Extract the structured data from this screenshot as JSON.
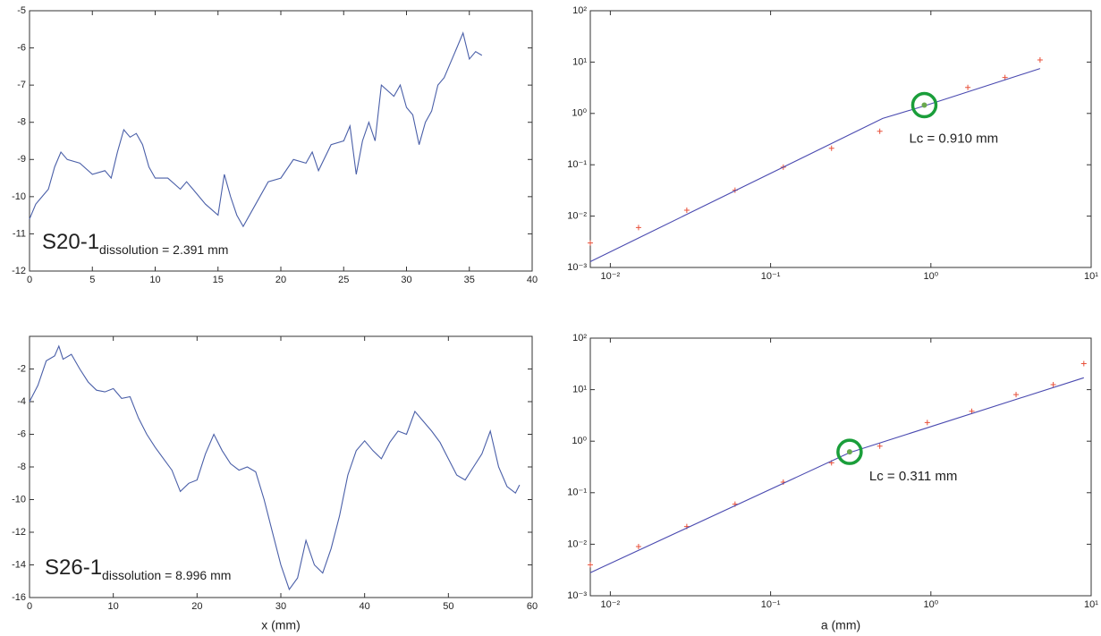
{
  "chart_data": [
    {
      "type": "line",
      "label": "S20-1",
      "label_sub": "dissolution = 2.391 mm",
      "xlim": [
        0,
        40
      ],
      "xticks": [
        0,
        5,
        10,
        15,
        20,
        25,
        30,
        35,
        40
      ],
      "ylim": [
        -12,
        -5
      ],
      "yticks": [
        -12,
        -11,
        -10,
        -9,
        -8,
        -7,
        -6,
        -5
      ],
      "series": [
        {
          "color": "#4a5fa8",
          "mode": "line",
          "x": [
            0,
            0.5,
            1,
            1.5,
            2,
            2.5,
            3,
            4,
            5,
            6,
            6.5,
            7,
            7.5,
            8,
            8.5,
            9,
            9.5,
            10,
            11,
            12,
            12.5,
            13,
            14,
            15,
            15.5,
            16,
            16.5,
            17,
            18,
            19,
            20,
            21,
            22,
            22.5,
            23,
            24,
            25,
            25.5,
            26,
            26.5,
            27,
            27.5,
            28,
            29,
            29.5,
            30,
            30.5,
            31,
            31.5,
            32,
            32.5,
            33,
            34,
            34.5,
            35,
            35.5,
            36
          ],
          "values": [
            -10.6,
            -10.2,
            -10.0,
            -9.8,
            -9.2,
            -8.8,
            -9.0,
            -9.1,
            -9.4,
            -9.3,
            -9.5,
            -8.8,
            -8.2,
            -8.4,
            -8.3,
            -8.6,
            -9.2,
            -9.5,
            -9.5,
            -9.8,
            -9.6,
            -9.8,
            -10.2,
            -10.5,
            -9.4,
            -10.0,
            -10.5,
            -10.8,
            -10.2,
            -9.6,
            -9.5,
            -9.0,
            -9.1,
            -8.8,
            -9.3,
            -8.6,
            -8.5,
            -8.1,
            -9.4,
            -8.5,
            -8.0,
            -8.5,
            -7.0,
            -7.3,
            -7.0,
            -7.6,
            -7.8,
            -8.6,
            -8.0,
            -7.7,
            -7.0,
            -6.8,
            -6.0,
            -5.6,
            -6.3,
            -6.1,
            -6.2
          ]
        }
      ]
    },
    {
      "type": "scatter",
      "xscale": "log",
      "yscale": "log",
      "xlim": [
        0.0075,
        10
      ],
      "xticks": [
        {
          "value": 0.01,
          "label": "10⁻²"
        },
        {
          "value": 0.1,
          "label": "10⁻¹"
        },
        {
          "value": 1,
          "label": "10⁰"
        },
        {
          "value": 10,
          "label": "10¹"
        }
      ],
      "ylim": [
        0.001,
        100
      ],
      "yticks": [
        {
          "value": 0.001,
          "label": "10⁻³"
        },
        {
          "value": 0.01,
          "label": "10⁻²"
        },
        {
          "value": 0.1,
          "label": "10⁻¹"
        },
        {
          "value": 1,
          "label": "10⁰"
        },
        {
          "value": 10,
          "label": "10¹"
        },
        {
          "value": 100,
          "label": "10²"
        }
      ],
      "series": [
        {
          "color": "#e8503a",
          "mode": "marker",
          "x": [
            0.0075,
            0.015,
            0.03,
            0.06,
            0.12,
            0.24,
            0.48,
            1.7,
            2.9,
            4.8
          ],
          "values": [
            0.003,
            0.006,
            0.013,
            0.032,
            0.09,
            0.21,
            0.45,
            3.2,
            5,
            11
          ]
        },
        {
          "color": "#4a4ab0",
          "mode": "line",
          "x": [
            0.0075,
            0.5,
            0.91,
            4.8
          ],
          "values": [
            0.0013,
            0.8,
            1.4,
            7.5
          ]
        }
      ],
      "highlight": {
        "x": 0.91,
        "y": 1.45,
        "color": "#1a9e3a",
        "text": "Lc = 0.910 mm"
      }
    },
    {
      "type": "line",
      "label": "S26-1",
      "label_sub": "dissolution = 8.996 mm",
      "xlabel": "x (mm)",
      "xlim": [
        0,
        60
      ],
      "xticks": [
        0,
        10,
        20,
        30,
        40,
        50,
        60
      ],
      "ylim": [
        -16,
        0
      ],
      "yticks": [
        -16,
        -14,
        -12,
        -10,
        -8,
        -6,
        -4,
        -2
      ],
      "series": [
        {
          "color": "#4a5fa8",
          "mode": "line",
          "x": [
            0,
            1,
            2,
            3,
            3.5,
            4,
            5,
            6,
            7,
            8,
            9,
            10,
            11,
            12,
            13,
            14,
            15,
            16,
            17,
            18,
            19,
            20,
            21,
            22,
            23,
            24,
            25,
            26,
            27,
            28,
            29,
            30,
            31,
            32,
            33,
            34,
            35,
            36,
            37,
            38,
            39,
            40,
            41,
            42,
            43,
            44,
            45,
            46,
            47,
            48,
            49,
            50,
            51,
            52,
            53,
            54,
            55,
            56,
            57,
            58,
            58.5
          ],
          "values": [
            -4.0,
            -3.0,
            -1.5,
            -1.2,
            -0.6,
            -1.4,
            -1.1,
            -2.0,
            -2.8,
            -3.3,
            -3.4,
            -3.2,
            -3.8,
            -3.7,
            -5.0,
            -6.0,
            -6.8,
            -7.5,
            -8.2,
            -9.5,
            -9.0,
            -8.8,
            -7.2,
            -6.0,
            -7.0,
            -7.8,
            -8.2,
            -8.0,
            -8.3,
            -10.0,
            -12.0,
            -14.0,
            -15.5,
            -14.8,
            -12.5,
            -14.0,
            -14.5,
            -13.0,
            -11.0,
            -8.5,
            -7.0,
            -6.4,
            -7.0,
            -7.5,
            -6.5,
            -5.8,
            -6.0,
            -4.6,
            -5.2,
            -5.8,
            -6.5,
            -7.5,
            -8.5,
            -8.8,
            -8.0,
            -7.2,
            -5.8,
            -8.0,
            -9.2,
            -9.6,
            -9.1
          ]
        }
      ]
    },
    {
      "type": "scatter",
      "xscale": "log",
      "yscale": "log",
      "xlabel": "a (mm)",
      "xlim": [
        0.0075,
        10
      ],
      "xticks": [
        {
          "value": 0.01,
          "label": "10⁻²"
        },
        {
          "value": 0.1,
          "label": "10⁻¹"
        },
        {
          "value": 1,
          "label": "10⁰"
        },
        {
          "value": 10,
          "label": "10¹"
        }
      ],
      "ylim": [
        0.001,
        100
      ],
      "yticks": [
        {
          "value": 0.001,
          "label": "10⁻³"
        },
        {
          "value": 0.01,
          "label": "10⁻²"
        },
        {
          "value": 0.1,
          "label": "10⁻¹"
        },
        {
          "value": 1,
          "label": "10⁰"
        },
        {
          "value": 10,
          "label": "10¹"
        },
        {
          "value": 100,
          "label": "10²"
        }
      ],
      "series": [
        {
          "color": "#e8503a",
          "mode": "marker",
          "x": [
            0.0075,
            0.015,
            0.03,
            0.06,
            0.12,
            0.24,
            0.48,
            0.95,
            1.8,
            3.4,
            5.8,
            9
          ],
          "values": [
            0.004,
            0.009,
            0.022,
            0.06,
            0.16,
            0.38,
            0.8,
            2.3,
            3.8,
            8,
            12.5,
            32
          ]
        },
        {
          "color": "#4a4ab0",
          "mode": "line",
          "x": [
            0.0075,
            0.311,
            9
          ],
          "values": [
            0.0028,
            0.6,
            17
          ]
        }
      ],
      "highlight": {
        "x": 0.311,
        "y": 0.62,
        "color": "#1a9e3a",
        "text": "Lc = 0.311 mm"
      }
    }
  ]
}
